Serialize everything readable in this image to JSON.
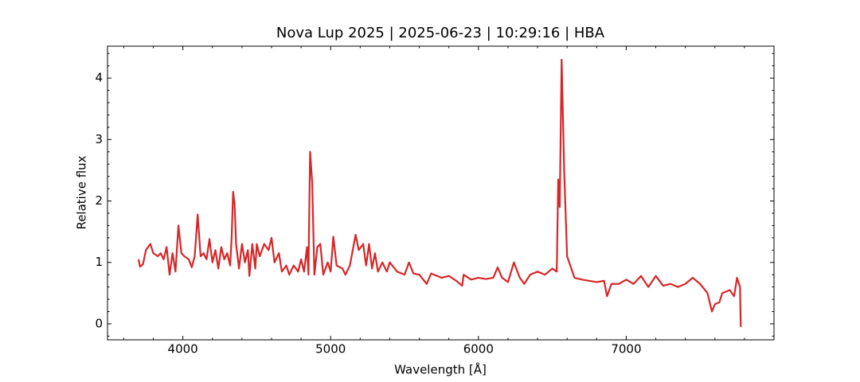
{
  "chart_data": {
    "type": "line",
    "title": "Nova Lup 2025 | 2025-06-23 | 10:29:16 | HBA",
    "x_label": "Wavelength [Å]",
    "y_label": "Relative flux",
    "color": "#d62728",
    "x": [
      3700,
      3710,
      3730,
      3750,
      3780,
      3800,
      3830,
      3850,
      3870,
      3890,
      3910,
      3930,
      3950,
      3970,
      3990,
      4010,
      4040,
      4060,
      4080,
      4100,
      4120,
      4140,
      4160,
      4180,
      4200,
      4220,
      4240,
      4260,
      4280,
      4300,
      4320,
      4330,
      4340,
      4350,
      4360,
      4380,
      4400,
      4420,
      4440,
      4450,
      4470,
      4490,
      4500,
      4520,
      4550,
      4580,
      4600,
      4620,
      4650,
      4670,
      4700,
      4720,
      4750,
      4780,
      4800,
      4820,
      4840,
      4850,
      4855,
      4861,
      4875,
      4890,
      4910,
      4930,
      4950,
      4980,
      5000,
      5018,
      5040,
      5080,
      5100,
      5130,
      5169,
      5190,
      5220,
      5240,
      5260,
      5280,
      5300,
      5320,
      5350,
      5380,
      5400,
      5450,
      5500,
      5530,
      5560,
      5600,
      5650,
      5680,
      5750,
      5800,
      5850,
      5890,
      5900,
      5950,
      6000,
      6050,
      6100,
      6130,
      6160,
      6200,
      6240,
      6280,
      6310,
      6350,
      6400,
      6450,
      6500,
      6530,
      6540,
      6550,
      6563,
      6580,
      6600,
      6650,
      6700,
      6800,
      6850,
      6870,
      6900,
      6950,
      7000,
      7050,
      7100,
      7150,
      7200,
      7250,
      7300,
      7350,
      7400,
      7450,
      7500,
      7550,
      7580,
      7600,
      7630,
      7650,
      7700,
      7730,
      7750,
      7770,
      7775
    ],
    "values": [
      1.05,
      0.93,
      0.97,
      1.2,
      1.3,
      1.15,
      1.1,
      1.15,
      1.05,
      1.25,
      0.8,
      1.15,
      0.85,
      1.6,
      1.15,
      1.1,
      1.05,
      0.92,
      1.1,
      1.78,
      1.1,
      1.15,
      1.05,
      1.38,
      1.0,
      1.2,
      0.9,
      1.25,
      1.05,
      1.15,
      0.95,
      1.4,
      2.15,
      1.95,
      1.3,
      0.9,
      1.3,
      1.0,
      1.2,
      0.78,
      1.3,
      0.9,
      1.3,
      1.1,
      1.3,
      1.2,
      1.4,
      1.0,
      1.15,
      0.85,
      0.95,
      0.8,
      0.95,
      0.85,
      1.05,
      0.85,
      1.25,
      0.8,
      1.8,
      2.8,
      2.3,
      0.8,
      1.25,
      1.3,
      0.8,
      1.0,
      0.85,
      1.42,
      0.95,
      0.9,
      0.8,
      0.95,
      1.45,
      1.2,
      1.3,
      0.95,
      1.3,
      0.9,
      1.15,
      0.85,
      1.0,
      0.85,
      1.0,
      0.85,
      0.8,
      1.0,
      0.82,
      0.8,
      0.65,
      0.82,
      0.75,
      0.78,
      0.7,
      0.62,
      0.8,
      0.72,
      0.75,
      0.73,
      0.75,
      0.92,
      0.75,
      0.68,
      1.0,
      0.75,
      0.65,
      0.8,
      0.85,
      0.8,
      0.9,
      0.85,
      2.35,
      1.9,
      4.3,
      2.5,
      1.1,
      0.75,
      0.72,
      0.68,
      0.7,
      0.45,
      0.65,
      0.65,
      0.72,
      0.65,
      0.78,
      0.6,
      0.78,
      0.62,
      0.65,
      0.6,
      0.65,
      0.75,
      0.65,
      0.5,
      0.2,
      0.32,
      0.35,
      0.5,
      0.55,
      0.45,
      0.75,
      0.6,
      -0.05
    ],
    "xlim": [
      3490,
      8000
    ],
    "ylim": [
      -0.26,
      4.52
    ],
    "xticks": [
      4000,
      5000,
      6000,
      7000
    ],
    "yticks": [
      0,
      1,
      2,
      3,
      4
    ],
    "minor_xticks": [
      3600,
      3800,
      4200,
      4400,
      4600,
      4800,
      5200,
      5400,
      5600,
      5800,
      6200,
      6400,
      6600,
      6800,
      7200,
      7400,
      7600,
      7800
    ],
    "minor_yticks": [
      -0.2,
      0.2,
      0.4,
      0.6,
      0.8,
      1.2,
      1.4,
      1.6,
      1.8,
      2.2,
      2.4,
      2.6,
      2.8,
      3.2,
      3.4,
      3.6,
      3.8,
      4.2,
      4.4
    ],
    "grid": false
  }
}
